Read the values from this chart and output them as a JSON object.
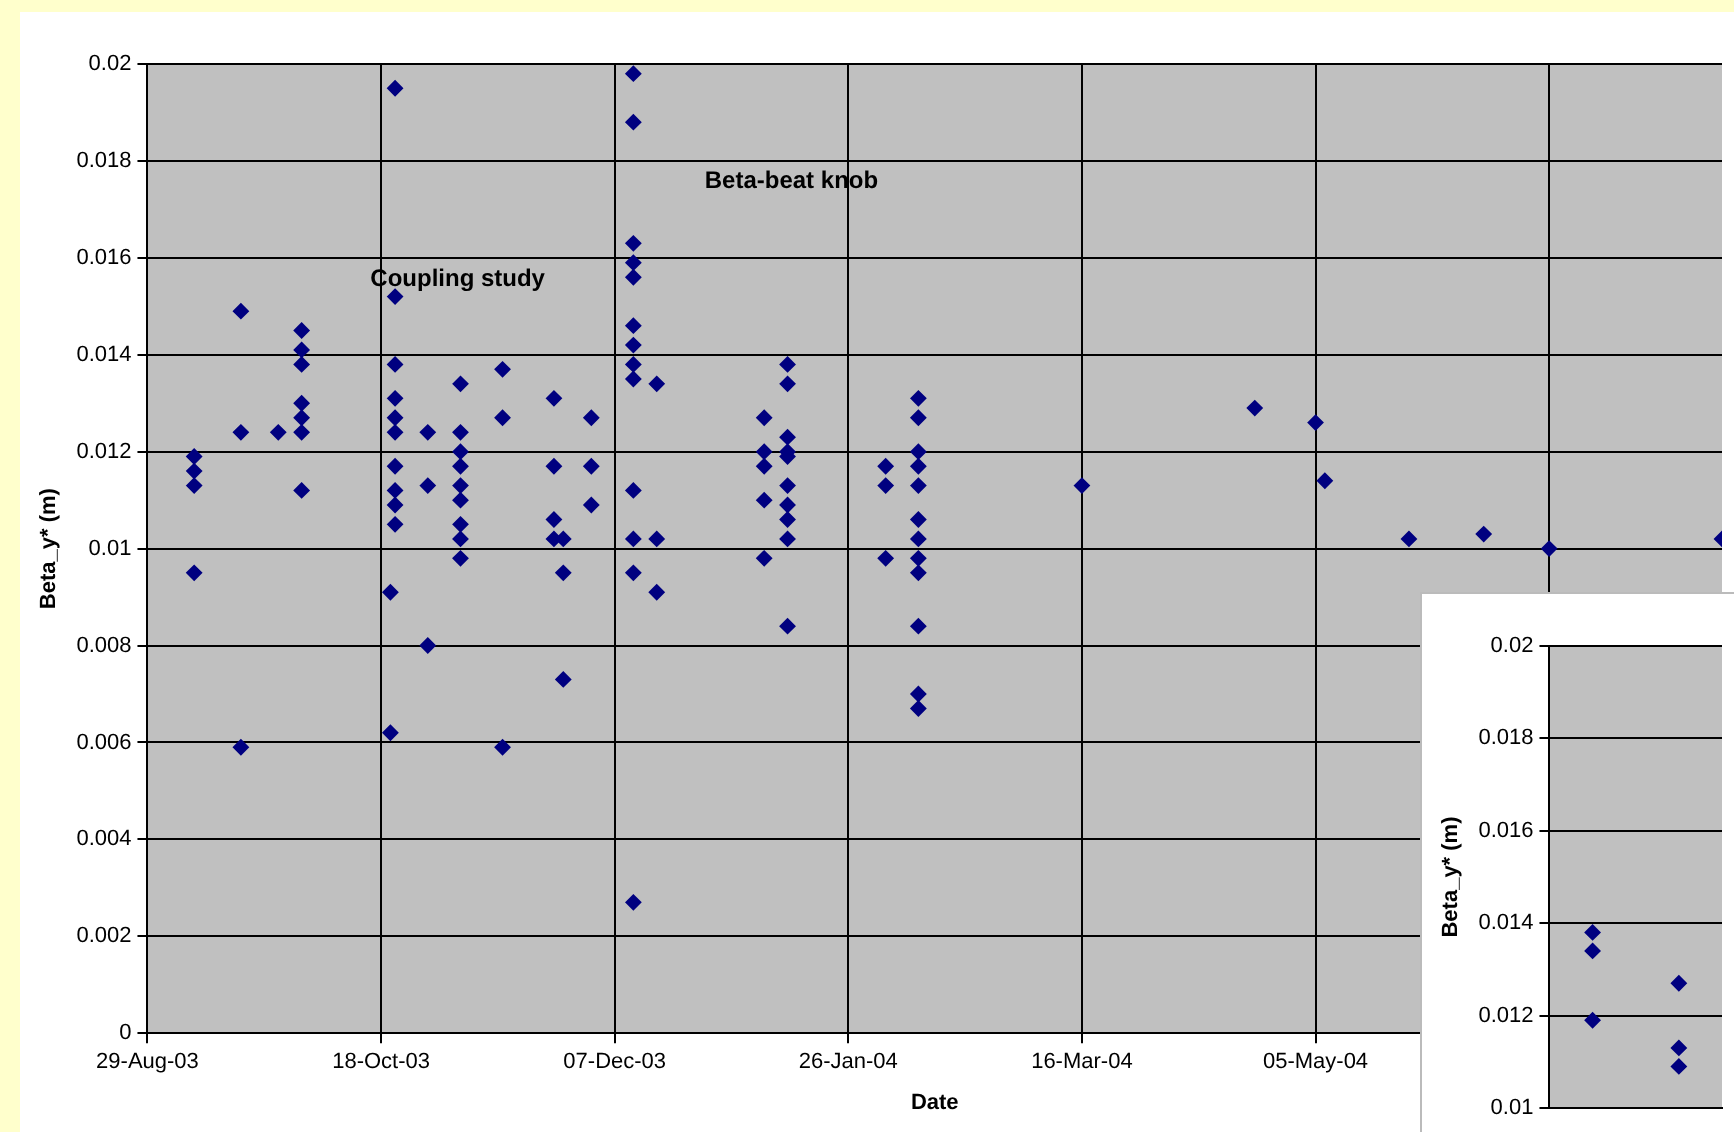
{
  "chart_data": [
    {
      "type": "scatter",
      "xlabel": "Date",
      "ylabel": "Beta_y* (m)",
      "marker": "diamond",
      "grid": true,
      "legend": false,
      "xlim": [
        "2003-08-29",
        "2004-07-31"
      ],
      "xticks": [
        {
          "value": "2003-08-29",
          "label": "29-Aug-03"
        },
        {
          "value": "2003-10-18",
          "label": "18-Oct-03"
        },
        {
          "value": "2003-12-07",
          "label": "07-Dec-03"
        },
        {
          "value": "2004-01-26",
          "label": "26-Jan-04"
        },
        {
          "value": "2004-03-16",
          "label": "16-Mar-04"
        },
        {
          "value": "2004-05-05",
          "label": "05-May-04"
        },
        {
          "value": "2004-06-24",
          "label": null
        }
      ],
      "ylim": [
        0,
        0.02
      ],
      "yticks": [
        0,
        0.002,
        0.004,
        0.006,
        0.008,
        0.01,
        0.012,
        0.014,
        0.016,
        0.018,
        0.02
      ],
      "annotations": [
        "Coupling study",
        "Beta-beat knob"
      ],
      "series": [
        {
          "color": "#000080",
          "x": [
            "2003-09-08",
            "2003-09-08",
            "2003-09-08",
            "2003-09-08",
            "2003-09-18",
            "2003-09-18",
            "2003-09-18",
            "2003-09-26",
            "2003-10-01",
            "2003-10-01",
            "2003-10-01",
            "2003-10-01",
            "2003-10-01",
            "2003-10-01",
            "2003-10-01",
            "2003-10-21",
            "2003-10-21",
            "2003-10-21",
            "2003-10-21",
            "2003-10-21",
            "2003-10-21",
            "2003-10-21",
            "2003-10-21",
            "2003-10-21",
            "2003-10-21",
            "2003-10-20",
            "2003-10-20",
            "2003-10-28",
            "2003-10-28",
            "2003-10-28",
            "2003-11-04",
            "2003-11-04",
            "2003-11-04",
            "2003-11-04",
            "2003-11-04",
            "2003-11-04",
            "2003-11-04",
            "2003-11-04",
            "2003-11-04",
            "2003-11-13",
            "2003-11-13",
            "2003-11-13",
            "2003-11-24",
            "2003-11-24",
            "2003-11-24",
            "2003-11-24",
            "2003-11-26",
            "2003-11-26",
            "2003-11-26",
            "2003-12-02",
            "2003-12-02",
            "2003-12-02",
            "2003-12-11",
            "2003-12-11",
            "2003-12-11",
            "2003-12-11",
            "2003-12-11",
            "2003-12-11",
            "2003-12-11",
            "2003-12-11",
            "2003-12-11",
            "2003-12-11",
            "2003-12-11",
            "2003-12-11",
            "2003-12-11",
            "2003-12-16",
            "2003-12-16",
            "2003-12-16",
            "2004-01-08",
            "2004-01-08",
            "2004-01-08",
            "2004-01-08",
            "2004-01-08",
            "2004-01-13",
            "2004-01-13",
            "2004-01-13",
            "2004-01-13",
            "2004-01-13",
            "2004-01-13",
            "2004-01-13",
            "2004-01-13",
            "2004-01-13",
            "2004-01-13",
            "2004-02-03",
            "2004-02-03",
            "2004-02-03",
            "2004-02-10",
            "2004-02-10",
            "2004-02-10",
            "2004-02-10",
            "2004-02-10",
            "2004-02-10",
            "2004-02-10",
            "2004-02-10",
            "2004-02-10",
            "2004-02-10",
            "2004-02-10",
            "2004-02-10",
            "2004-03-16",
            "2004-04-22",
            "2004-05-05",
            "2004-05-07",
            "2004-05-25",
            "2004-06-10",
            "2004-06-24",
            "2004-07-31"
          ],
          "values": [
            0.0119,
            0.0116,
            0.0113,
            0.0095,
            0.0149,
            0.0124,
            0.0059,
            0.0124,
            0.0145,
            0.0141,
            0.0138,
            0.013,
            0.0127,
            0.0124,
            0.0112,
            0.0195,
            0.0152,
            0.0138,
            0.0131,
            0.0127,
            0.0124,
            0.0117,
            0.0112,
            0.0109,
            0.0105,
            0.0091,
            0.0062,
            0.0124,
            0.0113,
            0.008,
            0.0134,
            0.0124,
            0.012,
            0.0117,
            0.0113,
            0.011,
            0.0105,
            0.0102,
            0.0098,
            0.0137,
            0.0127,
            0.0059,
            0.0131,
            0.0117,
            0.0106,
            0.0102,
            0.0102,
            0.0095,
            0.0073,
            0.0127,
            0.0117,
            0.0109,
            0.0198,
            0.0188,
            0.0163,
            0.0159,
            0.0156,
            0.0146,
            0.0142,
            0.0138,
            0.0135,
            0.0112,
            0.0102,
            0.0095,
            0.0027,
            0.0134,
            0.0102,
            0.0091,
            0.0127,
            0.012,
            0.0117,
            0.011,
            0.0098,
            0.0138,
            0.0134,
            0.0123,
            0.012,
            0.0119,
            0.0113,
            0.0109,
            0.0106,
            0.0102,
            0.0084,
            0.0117,
            0.0113,
            0.0098,
            0.0131,
            0.0127,
            0.012,
            0.0117,
            0.0113,
            0.0106,
            0.0102,
            0.0098,
            0.0095,
            0.0084,
            0.007,
            0.0067,
            0.0113,
            0.0129,
            0.0126,
            0.0114,
            0.0102,
            0.0103,
            0.01,
            0.0102
          ]
        }
      ]
    },
    {
      "type": "scatter",
      "ylabel": "Beta_y* (m)",
      "marker": "diamond",
      "grid": "y",
      "legend": false,
      "tick_labels": "y",
      "categories": [
        null,
        null
      ],
      "ylim": [
        0.01,
        0.02
      ],
      "yticks": [
        0.01,
        0.012,
        0.014,
        0.016,
        0.018,
        0.02
      ],
      "series": [
        {
          "color": "#000080",
          "values": [
            0.0138,
            0.0127
          ]
        },
        {
          "color": "#000080",
          "values": [
            0.0134,
            0.0113
          ]
        },
        {
          "color": "#000080",
          "values": [
            0.0119,
            0.0109
          ]
        }
      ]
    }
  ]
}
